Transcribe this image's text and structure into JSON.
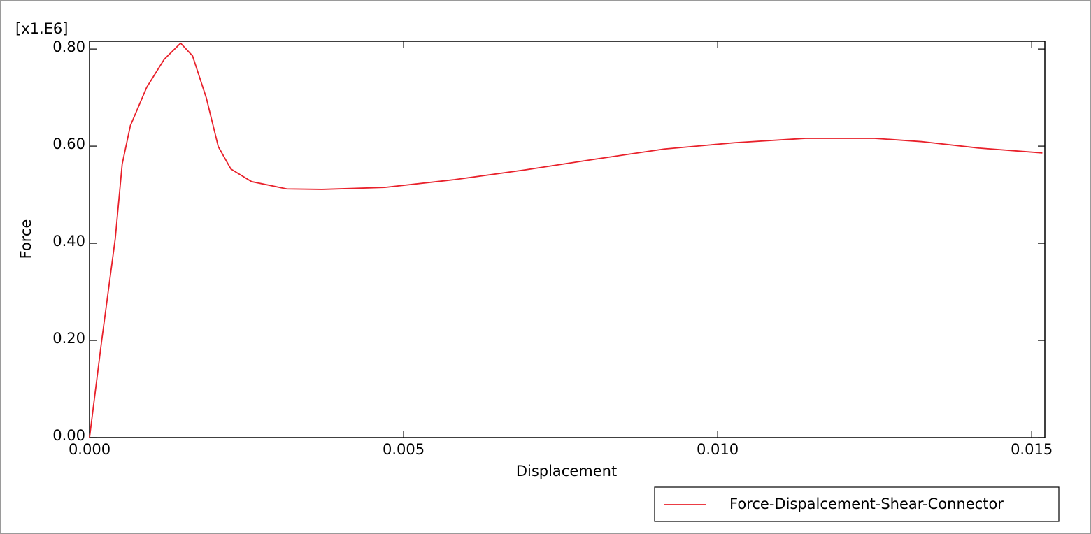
{
  "chart_data": {
    "type": "line",
    "multiplier_label": "[x1.E6]",
    "x_label": "Displacement",
    "y_label": "Force",
    "xlim": [
      0,
      0.01521
    ],
    "ylim": [
      0,
      0.816
    ],
    "xticks": [
      {
        "value": 0,
        "label": "0.000"
      },
      {
        "value": 0.005,
        "label": "0.005"
      },
      {
        "value": 0.01,
        "label": "0.010"
      },
      {
        "value": 0.015,
        "label": "0.015"
      }
    ],
    "yticks": [
      {
        "value": 0,
        "label": "0.00"
      },
      {
        "value": 0.2,
        "label": "0.20"
      },
      {
        "value": 0.4,
        "label": "0.40"
      },
      {
        "value": 0.6,
        "label": "0.60"
      },
      {
        "value": 0.8,
        "label": "0.80"
      }
    ],
    "x": [
      0,
      0.00019,
      0.00041,
      0.00052,
      0.00065,
      0.00091,
      0.00119,
      0.00145,
      0.00164,
      0.00186,
      0.00205,
      0.00225,
      0.00258,
      0.00314,
      0.0037,
      0.0047,
      0.00581,
      0.00693,
      0.00804,
      0.00915,
      0.01027,
      0.0114,
      0.0125,
      0.01327,
      0.01416,
      0.01517
    ],
    "series": [
      {
        "name": "Force-Dispalcement-Shear-Connector",
        "color": "#e8202a",
        "values": [
          0,
          0.196,
          0.41,
          0.563,
          0.642,
          0.721,
          0.779,
          0.812,
          0.786,
          0.699,
          0.599,
          0.553,
          0.527,
          0.512,
          0.511,
          0.515,
          0.531,
          0.551,
          0.573,
          0.594,
          0.607,
          0.616,
          0.616,
          0.609,
          0.596,
          0.586
        ]
      }
    ],
    "legend": "bottom-right"
  }
}
